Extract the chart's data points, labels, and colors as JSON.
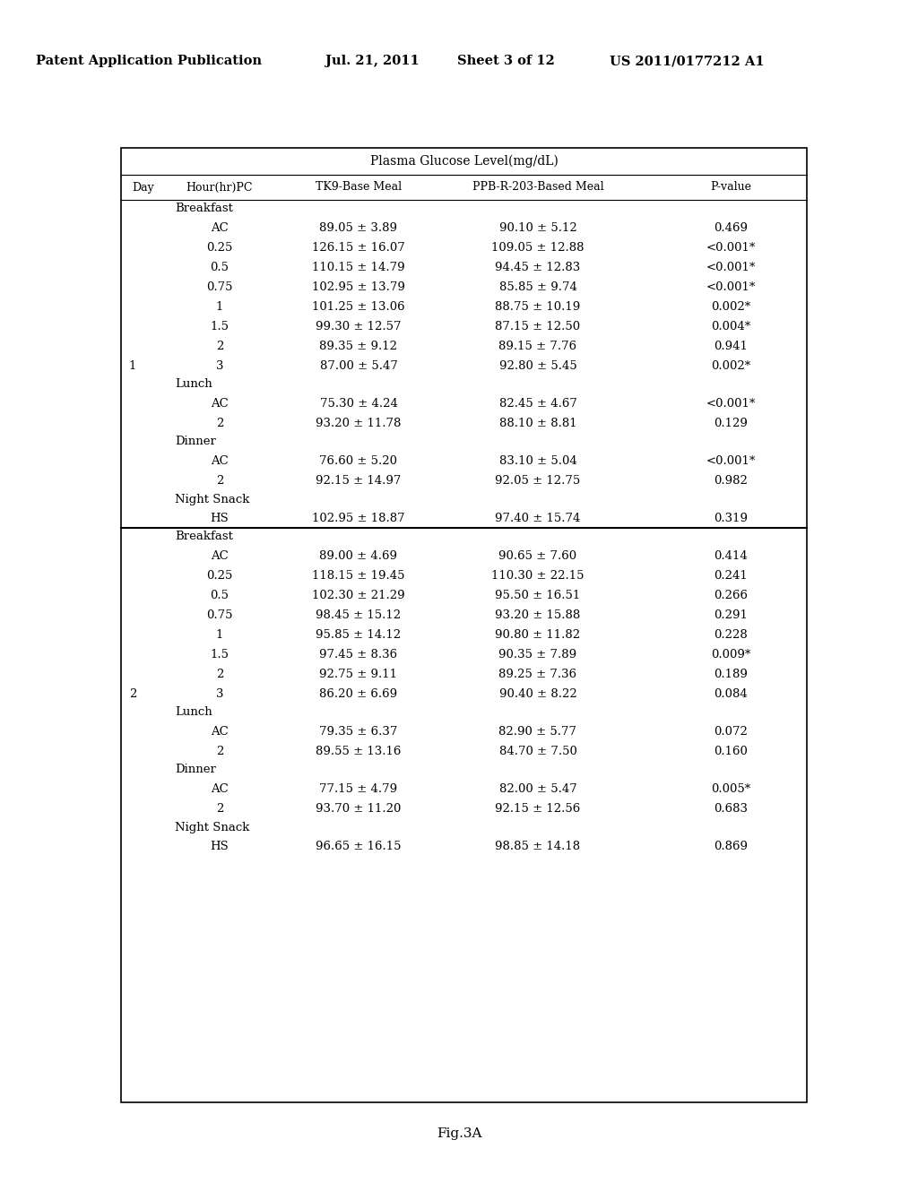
{
  "header_text": "Patent Application Publication",
  "date_text": "Jul. 21, 2011",
  "sheet_text": "Sheet 3 of 12",
  "patent_text": "US 2011/0177212 A1",
  "table_title": "Plasma Glucose Level(mg/dL)",
  "col_headers": [
    "Day",
    "Hour(hr)PC",
    "TK9-Base Meal",
    "PPB-R-203-Based Meal",
    "P-value"
  ],
  "figure_label": "Fig.3A",
  "rows": [
    [
      "",
      "Breakfast",
      "",
      "",
      ""
    ],
    [
      "",
      "AC",
      "89.05 ± 3.89",
      "90.10 ± 5.12",
      "0.469"
    ],
    [
      "",
      "0.25",
      "126.15 ± 16.07",
      "109.05 ± 12.88",
      "<0.001*"
    ],
    [
      "",
      "0.5",
      "110.15 ± 14.79",
      "94.45 ± 12.83",
      "<0.001*"
    ],
    [
      "",
      "0.75",
      "102.95 ± 13.79",
      "85.85 ± 9.74",
      "<0.001*"
    ],
    [
      "",
      "1",
      "101.25 ± 13.06",
      "88.75 ± 10.19",
      "0.002*"
    ],
    [
      "",
      "1.5",
      "99.30 ± 12.57",
      "87.15 ± 12.50",
      "0.004*"
    ],
    [
      "",
      "2",
      "89.35 ± 9.12",
      "89.15 ± 7.76",
      "0.941"
    ],
    [
      "1",
      "3",
      "87.00 ± 5.47",
      "92.80 ± 5.45",
      "0.002*"
    ],
    [
      "",
      "Lunch",
      "",
      "",
      ""
    ],
    [
      "",
      "AC",
      "75.30 ± 4.24",
      "82.45 ± 4.67",
      "<0.001*"
    ],
    [
      "",
      "2",
      "93.20 ± 11.78",
      "88.10 ± 8.81",
      "0.129"
    ],
    [
      "",
      "Dinner",
      "",
      "",
      ""
    ],
    [
      "",
      "AC",
      "76.60 ± 5.20",
      "83.10 ± 5.04",
      "<0.001*"
    ],
    [
      "",
      "2",
      "92.15 ± 14.97",
      "92.05 ± 12.75",
      "0.982"
    ],
    [
      "",
      "Night Snack",
      "",
      "",
      ""
    ],
    [
      "",
      "HS",
      "102.95 ± 18.87",
      "97.40 ± 15.74",
      "0.319"
    ],
    [
      "",
      "Breakfast",
      "",
      "",
      ""
    ],
    [
      "",
      "AC",
      "89.00 ± 4.69",
      "90.65 ± 7.60",
      "0.414"
    ],
    [
      "",
      "0.25",
      "118.15 ± 19.45",
      "110.30 ± 22.15",
      "0.241"
    ],
    [
      "",
      "0.5",
      "102.30 ± 21.29",
      "95.50 ± 16.51",
      "0.266"
    ],
    [
      "",
      "0.75",
      "98.45 ± 15.12",
      "93.20 ± 15.88",
      "0.291"
    ],
    [
      "",
      "1",
      "95.85 ± 14.12",
      "90.80 ± 11.82",
      "0.228"
    ],
    [
      "",
      "1.5",
      "97.45 ± 8.36",
      "90.35 ± 7.89",
      "0.009*"
    ],
    [
      "",
      "2",
      "92.75 ± 9.11",
      "89.25 ± 7.36",
      "0.189"
    ],
    [
      "2",
      "3",
      "86.20 ± 6.69",
      "90.40 ± 8.22",
      "0.084"
    ],
    [
      "",
      "Lunch",
      "",
      "",
      ""
    ],
    [
      "",
      "AC",
      "79.35 ± 6.37",
      "82.90 ± 5.77",
      "0.072"
    ],
    [
      "",
      "2",
      "89.55 ± 13.16",
      "84.70 ± 7.50",
      "0.160"
    ],
    [
      "",
      "Dinner",
      "",
      "",
      ""
    ],
    [
      "",
      "AC",
      "77.15 ± 4.79",
      "82.00 ± 5.47",
      "0.005*"
    ],
    [
      "",
      "2",
      "93.70 ± 11.20",
      "92.15 ± 12.56",
      "0.683"
    ],
    [
      "",
      "Night Snack",
      "",
      "",
      ""
    ],
    [
      "",
      "HS",
      "96.65 ± 16.15",
      "98.85 ± 14.18",
      "0.869"
    ]
  ],
  "section_rows": [
    0,
    9,
    12,
    15,
    17,
    26,
    29,
    32
  ],
  "separator_after_row": 16,
  "bg_color": "#ffffff",
  "text_color": "#000000"
}
